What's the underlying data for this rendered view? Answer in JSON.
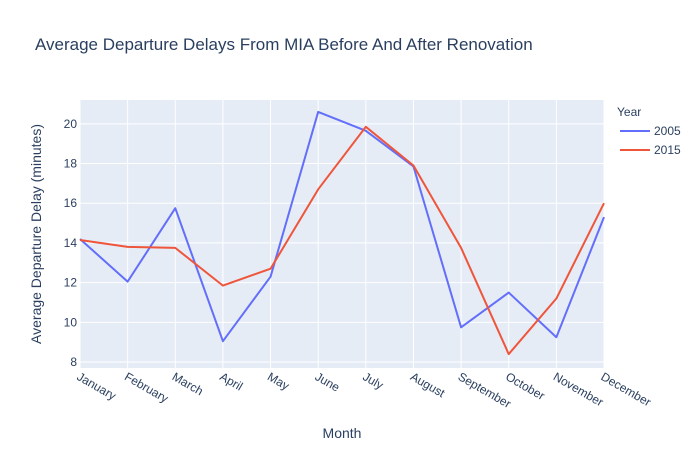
{
  "chart_data": {
    "type": "line",
    "title": "Average Departure Delays From MIA Before And After Renovation",
    "xlabel": "Month",
    "ylabel": "Average Departure Delay (minutes)",
    "legend_title": "Year",
    "legend_position": "top-right",
    "grid": true,
    "ylim": [
      7.7,
      21.2
    ],
    "yticks": [
      "8",
      "10",
      "12",
      "14",
      "16",
      "18",
      "20"
    ],
    "categories": [
      "January",
      "February",
      "March",
      "April",
      "May",
      "June",
      "July",
      "August",
      "September",
      "October",
      "November",
      "December"
    ],
    "series": [
      {
        "name": "2005",
        "color": "#636efa",
        "values": [
          14.2,
          12.05,
          15.75,
          9.05,
          12.3,
          20.6,
          19.65,
          17.85,
          9.75,
          11.5,
          9.25,
          15.3
        ]
      },
      {
        "name": "2015",
        "color": "#ef553b",
        "values": [
          14.15,
          13.8,
          13.75,
          11.85,
          12.7,
          16.7,
          19.85,
          17.9,
          13.75,
          8.4,
          11.2,
          16.0
        ]
      }
    ]
  }
}
